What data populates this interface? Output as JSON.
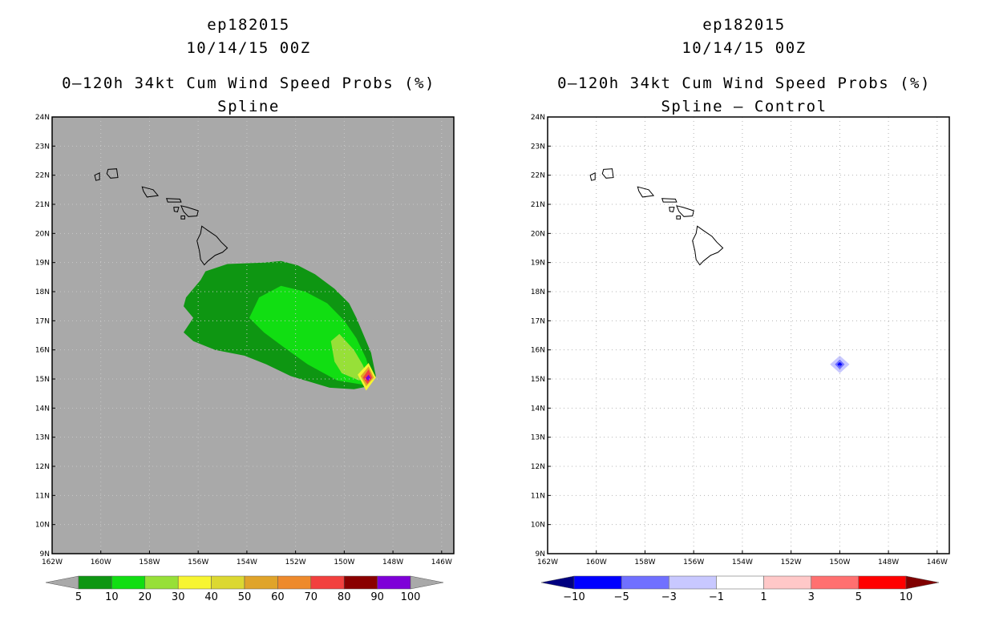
{
  "panels": [
    {
      "title_line1": "ep182015",
      "title_line2": "10/14/15 00Z",
      "title_line3": "0–120h 34kt Cum Wind Speed Probs (%)",
      "title_line4": "Spline",
      "background": "#a9a9a9",
      "colorbar": {
        "under_color": "#a9a9a9",
        "over_color": "#a9a9a9",
        "colors": [
          "#0e9612",
          "#11de12",
          "#97e038",
          "#f7f531",
          "#dcd831",
          "#e0a42a",
          "#ee8a2c",
          "#f2403e",
          "#8a0000",
          "#7e00d8"
        ],
        "labels": [
          "5",
          "10",
          "20",
          "30",
          "40",
          "50",
          "60",
          "70",
          "80",
          "90",
          "100"
        ]
      }
    },
    {
      "title_line1": "ep182015",
      "title_line2": "10/14/15 00Z",
      "title_line3": "0–120h 34kt Cum Wind Speed Probs (%)",
      "title_line4": "Spline – Control",
      "background": "#ffffff",
      "colorbar": {
        "under_color": "#000080",
        "over_color": "#800000",
        "colors": [
          "#0000ff",
          "#7070ff",
          "#c8c8ff",
          "#ffffff",
          "#ffc8c8",
          "#ff7070",
          "#ff0000"
        ],
        "labels": [
          "−10",
          "−5",
          "−3",
          "−1",
          "1",
          "3",
          "5",
          "10"
        ]
      }
    }
  ],
  "chart_data": {
    "type": "heatmap",
    "xlim": [
      -162,
      -145.5
    ],
    "ylim": [
      9,
      24
    ],
    "x_ticks": [
      -162,
      -160,
      -158,
      -156,
      -154,
      -152,
      -150,
      -148,
      -146
    ],
    "y_ticks": [
      9,
      10,
      11,
      12,
      13,
      14,
      15,
      16,
      17,
      18,
      19,
      20,
      21,
      22,
      23,
      24
    ],
    "x_tick_labels": [
      "162W",
      "160W",
      "158W",
      "156W",
      "154W",
      "152W",
      "150W",
      "148W",
      "146W"
    ],
    "y_tick_labels": [
      "9N",
      "10N",
      "11N",
      "12N",
      "13N",
      "14N",
      "15N",
      "16N",
      "17N",
      "18N",
      "19N",
      "20N",
      "21N",
      "22N",
      "23N",
      "24N"
    ],
    "islands": [
      {
        "name": "Niihau",
        "lonlat": [
          [
            -160.25,
            22.0
          ],
          [
            -160.05,
            22.08
          ],
          [
            -160.05,
            21.85
          ],
          [
            -160.2,
            21.82
          ]
        ]
      },
      {
        "name": "Kauai",
        "lonlat": [
          [
            -159.7,
            22.2
          ],
          [
            -159.35,
            22.22
          ],
          [
            -159.3,
            21.92
          ],
          [
            -159.6,
            21.9
          ],
          [
            -159.75,
            22.05
          ]
        ]
      },
      {
        "name": "Oahu",
        "lonlat": [
          [
            -158.3,
            21.6
          ],
          [
            -157.85,
            21.5
          ],
          [
            -157.65,
            21.3
          ],
          [
            -158.1,
            21.25
          ],
          [
            -158.25,
            21.45
          ]
        ]
      },
      {
        "name": "Molokai",
        "lonlat": [
          [
            -157.3,
            21.2
          ],
          [
            -156.75,
            21.18
          ],
          [
            -156.7,
            21.08
          ],
          [
            -157.25,
            21.08
          ]
        ]
      },
      {
        "name": "Lanai",
        "lonlat": [
          [
            -157.0,
            20.9
          ],
          [
            -156.8,
            20.9
          ],
          [
            -156.85,
            20.74
          ],
          [
            -156.98,
            20.76
          ]
        ]
      },
      {
        "name": "Maui",
        "lonlat": [
          [
            -156.7,
            20.95
          ],
          [
            -156.45,
            20.9
          ],
          [
            -156.0,
            20.78
          ],
          [
            -156.05,
            20.6
          ],
          [
            -156.4,
            20.58
          ],
          [
            -156.6,
            20.75
          ]
        ]
      },
      {
        "name": "Kahoolawe",
        "lonlat": [
          [
            -156.7,
            20.6
          ],
          [
            -156.55,
            20.6
          ],
          [
            -156.55,
            20.5
          ],
          [
            -156.7,
            20.5
          ]
        ]
      },
      {
        "name": "Hawaii",
        "lonlat": [
          [
            -155.85,
            20.25
          ],
          [
            -155.6,
            20.1
          ],
          [
            -155.25,
            19.9
          ],
          [
            -155.05,
            19.7
          ],
          [
            -154.8,
            19.5
          ],
          [
            -155.0,
            19.35
          ],
          [
            -155.3,
            19.25
          ],
          [
            -155.6,
            19.05
          ],
          [
            -155.75,
            18.92
          ],
          [
            -155.9,
            19.1
          ],
          [
            -155.95,
            19.4
          ],
          [
            -156.05,
            19.75
          ],
          [
            -155.9,
            20.0
          ]
        ]
      }
    ],
    "panels": [
      {
        "name": "Spline",
        "contours": [
          {
            "level": "5-10",
            "color": "#0e9612",
            "lonlat": [
              [
                -156.5,
                17.8
              ],
              [
                -155.9,
                18.4
              ],
              [
                -155.7,
                18.7
              ],
              [
                -154.8,
                18.95
              ],
              [
                -153.3,
                19.0
              ],
              [
                -152.6,
                19.05
              ],
              [
                -151.9,
                18.9
              ],
              [
                -151.2,
                18.6
              ],
              [
                -150.4,
                18.1
              ],
              [
                -149.8,
                17.6
              ],
              [
                -149.5,
                17.1
              ],
              [
                -149.2,
                16.5
              ],
              [
                -148.9,
                15.9
              ],
              [
                -148.7,
                15.1
              ],
              [
                -149.0,
                14.75
              ],
              [
                -149.6,
                14.65
              ],
              [
                -150.6,
                14.7
              ],
              [
                -152.2,
                15.1
              ],
              [
                -153.2,
                15.5
              ],
              [
                -154.1,
                15.8
              ],
              [
                -155.3,
                16.0
              ],
              [
                -156.2,
                16.3
              ],
              [
                -156.6,
                16.6
              ],
              [
                -156.2,
                17.1
              ],
              [
                -156.6,
                17.5
              ]
            ]
          },
          {
            "level": "10-20",
            "color": "#11de12",
            "lonlat": [
              [
                -153.9,
                17.1
              ],
              [
                -153.5,
                17.8
              ],
              [
                -152.6,
                18.2
              ],
              [
                -151.6,
                18.0
              ],
              [
                -150.7,
                17.6
              ],
              [
                -150.0,
                17.0
              ],
              [
                -149.5,
                16.4
              ],
              [
                -149.1,
                15.7
              ],
              [
                -148.85,
                15.0
              ],
              [
                -149.2,
                14.8
              ],
              [
                -150.3,
                14.95
              ],
              [
                -151.5,
                15.5
              ],
              [
                -152.5,
                16.1
              ],
              [
                -153.3,
                16.6
              ]
            ]
          },
          {
            "level": "20-30",
            "color": "#97e038",
            "lonlat": [
              [
                -150.55,
                16.3
              ],
              [
                -150.2,
                16.55
              ],
              [
                -149.6,
                16.0
              ],
              [
                -149.25,
                15.5
              ],
              [
                -149.0,
                15.05
              ],
              [
                -149.4,
                14.95
              ],
              [
                -150.1,
                15.2
              ],
              [
                -150.4,
                15.6
              ]
            ]
          },
          {
            "level": "30-40",
            "color": "#f7f531",
            "lonlat": [
              [
                -149.45,
                15.15
              ],
              [
                -149.0,
                15.55
              ],
              [
                -148.7,
                15.05
              ],
              [
                -149.1,
                14.6
              ]
            ]
          },
          {
            "level": "50-60",
            "color": "#e0a42a",
            "lonlat": [
              [
                -149.33,
                15.1
              ],
              [
                -149.0,
                15.43
              ],
              [
                -148.78,
                15.05
              ],
              [
                -149.1,
                14.75
              ]
            ]
          },
          {
            "level": "70-80",
            "color": "#f2403e",
            "lonlat": [
              [
                -149.23,
                15.05
              ],
              [
                -149.0,
                15.33
              ],
              [
                -148.85,
                15.05
              ],
              [
                -149.05,
                14.83
              ]
            ]
          },
          {
            "level": "90-100",
            "color": "#7e00d8",
            "lonlat": [
              [
                -149.12,
                15.03
              ],
              [
                -149.0,
                15.15
              ],
              [
                -148.92,
                15.03
              ],
              [
                -149.02,
                14.93
              ]
            ]
          }
        ]
      },
      {
        "name": "Spline – Control",
        "contours": [
          {
            "level": "-3 to -1",
            "color": "#c8c8ff",
            "lonlat": [
              [
                -150.4,
                15.5
              ],
              [
                -150.0,
                15.8
              ],
              [
                -149.6,
                15.5
              ],
              [
                -150.0,
                15.2
              ]
            ]
          },
          {
            "level": "-5 to -3",
            "color": "#7070ff",
            "lonlat": [
              [
                -150.2,
                15.5
              ],
              [
                -150.0,
                15.67
              ],
              [
                -149.8,
                15.5
              ],
              [
                -150.0,
                15.33
              ]
            ]
          },
          {
            "level": "-10 to -5",
            "color": "#0000ff",
            "lonlat": [
              [
                -150.1,
                15.5
              ],
              [
                -150.0,
                15.58
              ],
              [
                -149.9,
                15.5
              ],
              [
                -150.0,
                15.42
              ]
            ]
          }
        ]
      }
    ]
  }
}
